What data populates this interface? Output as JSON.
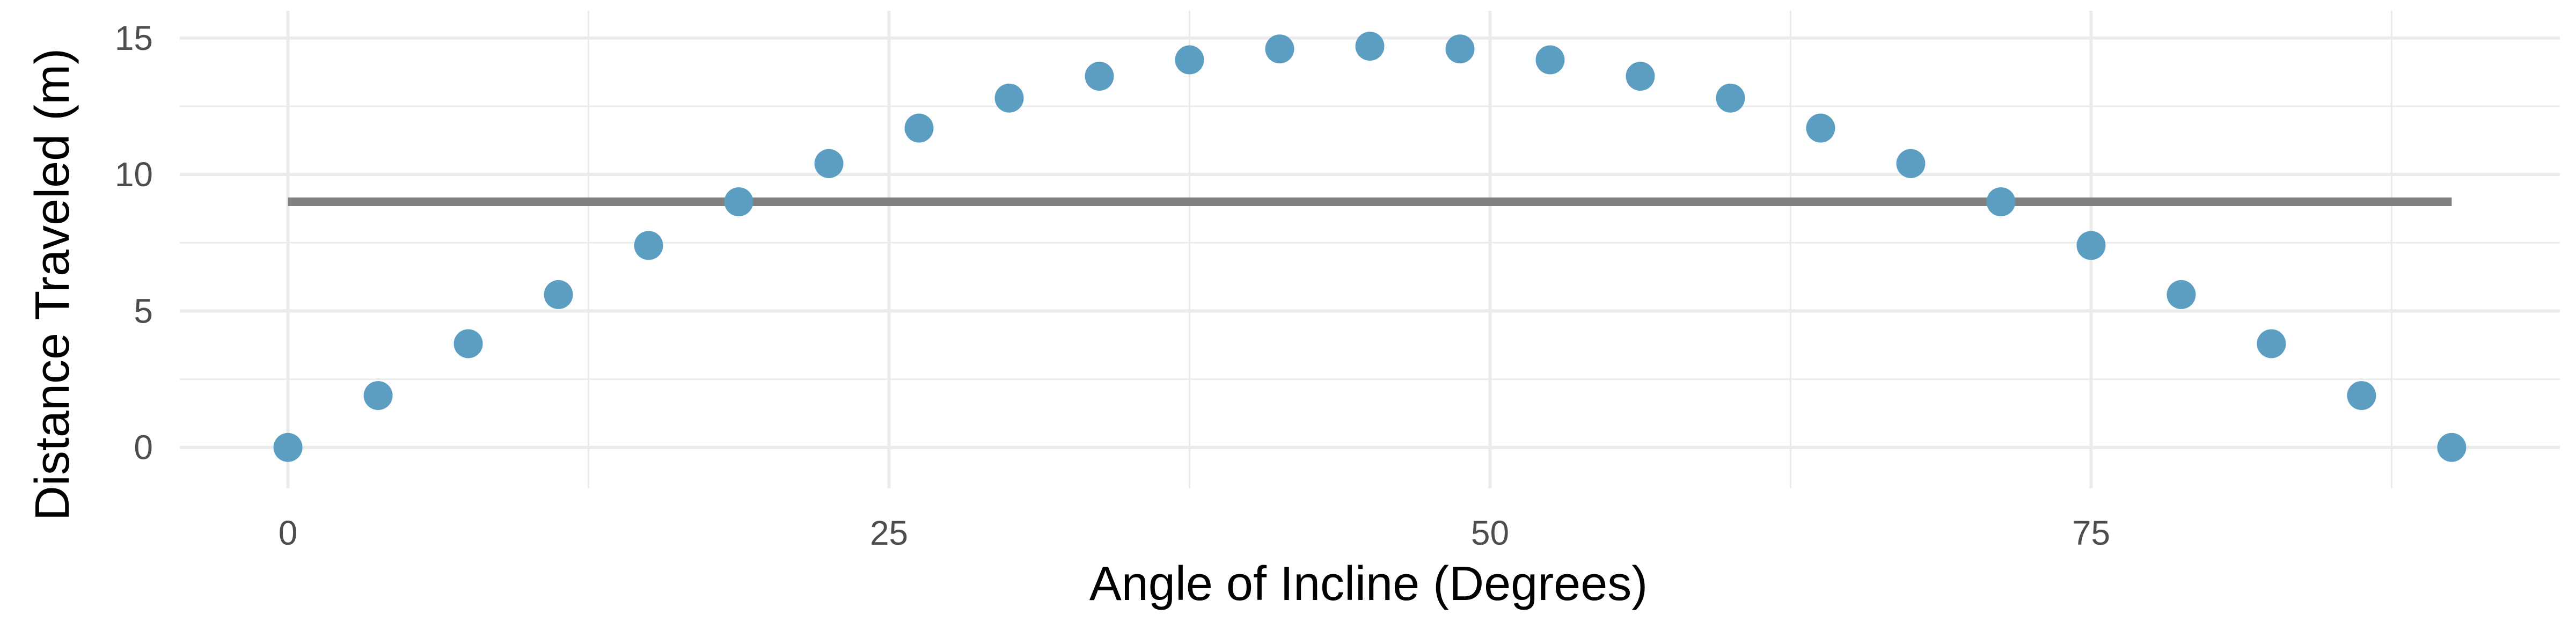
{
  "chart_data": {
    "type": "scatter",
    "xlabel": "Angle of Incline (Degrees)",
    "ylabel": "Distance Traveled (m)",
    "xlim": [
      -4.5,
      94.5
    ],
    "ylim": [
      -1.5,
      16
    ],
    "grid": true,
    "x_ticks": [
      0,
      25,
      50,
      75
    ],
    "x_tick_labels": [
      "0",
      "25",
      "50",
      "75"
    ],
    "y_ticks": [
      0,
      5,
      10,
      15
    ],
    "y_tick_labels": [
      "0",
      "5",
      "10",
      "15"
    ],
    "points": {
      "x": [
        0,
        3.75,
        7.5,
        11.25,
        15,
        18.75,
        22.5,
        26.25,
        30,
        33.75,
        37.5,
        41.25,
        45,
        48.75,
        52.5,
        56.25,
        60,
        63.75,
        67.5,
        71.25,
        75,
        78.75,
        82.5,
        86.25,
        90
      ],
      "y": [
        0,
        1.9,
        3.8,
        5.6,
        7.4,
        9.0,
        10.4,
        11.7,
        12.8,
        13.6,
        14.2,
        14.6,
        14.7,
        14.6,
        14.2,
        13.6,
        12.8,
        11.7,
        10.4,
        9.0,
        7.4,
        5.6,
        3.8,
        1.9,
        0
      ],
      "color": "#5b9ec2"
    },
    "reference_line": {
      "y": 9.0,
      "x_start": 0,
      "x_end": 90,
      "color": "#808080"
    }
  }
}
